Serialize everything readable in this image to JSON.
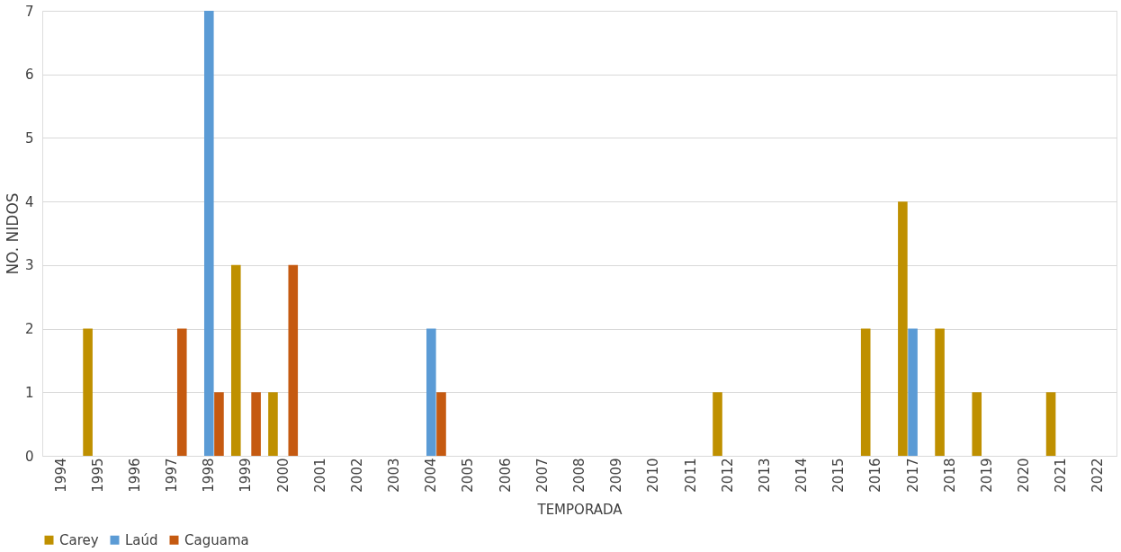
{
  "chart_data": {
    "type": "bar",
    "xlabel": "TEMPORADA",
    "ylabel": "NO. NIDOS",
    "categories": [
      "1994",
      "1995",
      "1996",
      "1997",
      "1998",
      "1999",
      "2000",
      "2001",
      "2002",
      "2003",
      "2004",
      "2005",
      "2006",
      "2007",
      "2008",
      "2009",
      "2010",
      "2011",
      "2012",
      "2013",
      "2014",
      "2015",
      "2016",
      "2017",
      "2018",
      "2019",
      "2020",
      "2021",
      "2022"
    ],
    "series": [
      {
        "name": "Carey",
        "color": "#bf9000",
        "values": [
          0,
          2,
          0,
          0,
          0,
          3,
          1,
          0,
          0,
          0,
          0,
          0,
          0,
          0,
          0,
          0,
          0,
          0,
          1,
          0,
          0,
          0,
          2,
          4,
          2,
          1,
          0,
          1,
          0
        ]
      },
      {
        "name": "Laúd",
        "color": "#5b9bd5",
        "values": [
          0,
          0,
          0,
          0,
          7,
          0,
          0,
          0,
          0,
          0,
          2,
          0,
          0,
          0,
          0,
          0,
          0,
          0,
          0,
          0,
          0,
          0,
          0,
          2,
          0,
          0,
          0,
          0,
          0
        ]
      },
      {
        "name": "Caguama",
        "color": "#c55a11",
        "values": [
          0,
          0,
          0,
          2,
          1,
          1,
          3,
          0,
          0,
          0,
          1,
          0,
          0,
          0,
          0,
          0,
          0,
          0,
          0,
          0,
          0,
          0,
          0,
          0,
          0,
          0,
          0,
          0,
          0
        ]
      }
    ],
    "ylim": [
      0,
      7
    ],
    "yticks": [
      0,
      1,
      2,
      3,
      4,
      5,
      6,
      7
    ],
    "grid": "y",
    "legend": "bottom"
  }
}
